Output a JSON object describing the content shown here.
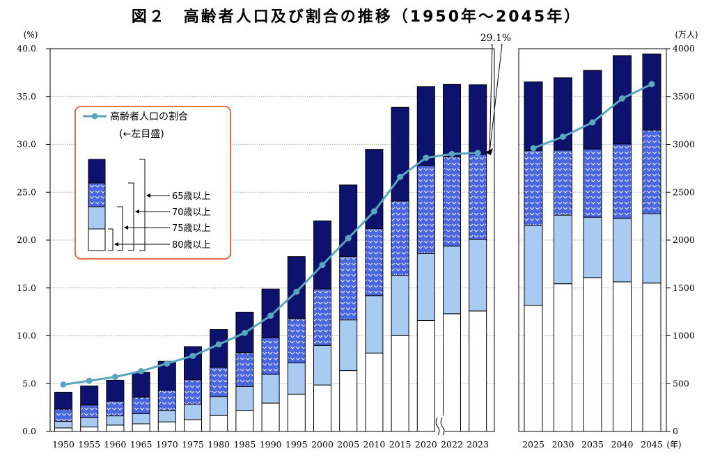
{
  "title": "図２　高齢者人口及び割合の推移（1950年～2045年）",
  "left_unit": "(%)",
  "right_unit": "(万人)",
  "year_unit": "(年)",
  "legend": {
    "line_label": "高齢者人口の割合",
    "line_sub": "(←左目盛)",
    "age_labels": [
      "65歳以上",
      "70歳以上",
      "75歳以上",
      "80歳以上"
    ]
  },
  "annotation": "29.1%",
  "colors": {
    "age65_69": "#0c126e",
    "age70_74": "#4a66e0",
    "age75_79": "#a9cbf2",
    "age80_plus": "#ffffff",
    "ratio_line": "#5aa6bf",
    "legend_border": "#e0603a"
  },
  "chart_data": {
    "type": "bar",
    "stacked": true,
    "left_axis": {
      "ylim": [
        0,
        40
      ],
      "ticks": [
        "0.0",
        "5.0",
        "10.0",
        "15.0",
        "20.0",
        "25.0",
        "30.0",
        "35.0",
        "40.0"
      ]
    },
    "right_axis": {
      "ylim": [
        0,
        4000
      ],
      "ticks": [
        "0",
        "500",
        "1000",
        "1500",
        "2000",
        "2500",
        "3000",
        "3500",
        "4000"
      ]
    },
    "grid": true,
    "panels": [
      {
        "categories": [
          "1950",
          "1955",
          "1960",
          "1965",
          "1970",
          "1975",
          "1980",
          "1985",
          "1990",
          "1995",
          "2000",
          "2005",
          "2010",
          "2015",
          "2020",
          "2022",
          "2023"
        ],
        "series": [
          {
            "name": "80歳以上",
            "values": [
              37,
              47,
              67,
              80,
              100,
              124,
              166,
              221,
              297,
              390,
              486,
              636,
              820,
              1000,
              1160,
              1230,
              1259
            ]
          },
          {
            "name": "75歳以上",
            "values": [
              106,
              147,
              163,
              187,
              221,
              284,
              366,
              471,
              597,
              717,
              900,
              1166,
              1420,
              1632,
              1860,
              1937,
              2007
            ]
          },
          {
            "name": "70歳以上",
            "values": [
              234,
              278,
              317,
              358,
              430,
              540,
              670,
              824,
              980,
              1180,
              1490,
              1830,
              2120,
              2408,
              2780,
              2870,
              2894
            ]
          },
          {
            "name": "65歳以上",
            "values": [
              411,
              475,
              535,
              618,
              733,
              887,
              1065,
              1247,
              1489,
              1828,
              2201,
              2576,
              2948,
              3387,
              3603,
              3627,
              3623
            ]
          }
        ],
        "ratio_percent": [
          4.9,
          5.3,
          5.7,
          6.3,
          7.1,
          7.9,
          9.1,
          10.3,
          12.1,
          14.6,
          17.4,
          20.2,
          23.0,
          26.6,
          28.6,
          29.0,
          29.1
        ]
      },
      {
        "categories": [
          "2025",
          "2030",
          "2035",
          "2040",
          "2045"
        ],
        "series": [
          {
            "name": "80歳以上",
            "values": [
              1316,
              1544,
              1608,
              1564,
              1551
            ]
          },
          {
            "name": "75歳以上",
            "values": [
              2155,
              2261,
              2239,
              2227,
              2277
            ]
          },
          {
            "name": "70歳以上",
            "values": [
              2934,
              2940,
              2952,
              3004,
              3149
            ]
          },
          {
            "name": "65歳以上",
            "values": [
              3653,
              3696,
              3773,
              3928,
              3945
            ]
          }
        ],
        "ratio_percent": [
          29.6,
          30.8,
          32.3,
          34.8,
          36.3
        ]
      }
    ]
  }
}
